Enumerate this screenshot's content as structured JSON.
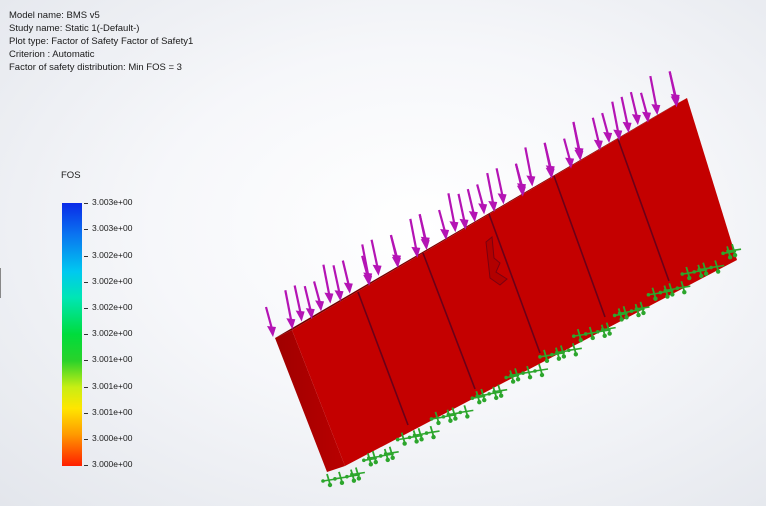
{
  "study_info": {
    "model_name": "Model name: BMS v5",
    "study_name": "Study name: Static 1(-Default-)",
    "plot_type": "Plot type: Factor of Safety Factor of Safety1",
    "criterion": "Criterion : Automatic",
    "distribution": "Factor of safety distribution: Min FOS = 3"
  },
  "legend": {
    "title": "FOS",
    "ticks": [
      "3.003e+00",
      "3.003e+00",
      "3.002e+00",
      "3.002e+00",
      "3.002e+00",
      "3.002e+00",
      "3.001e+00",
      "3.001e+00",
      "3.001e+00",
      "3.000e+00",
      "3.000e+00"
    ]
  },
  "model": {
    "fill_color": "#c40000",
    "load_arrow_color": "#b414b4",
    "fixture_color": "#2ca62c"
  }
}
